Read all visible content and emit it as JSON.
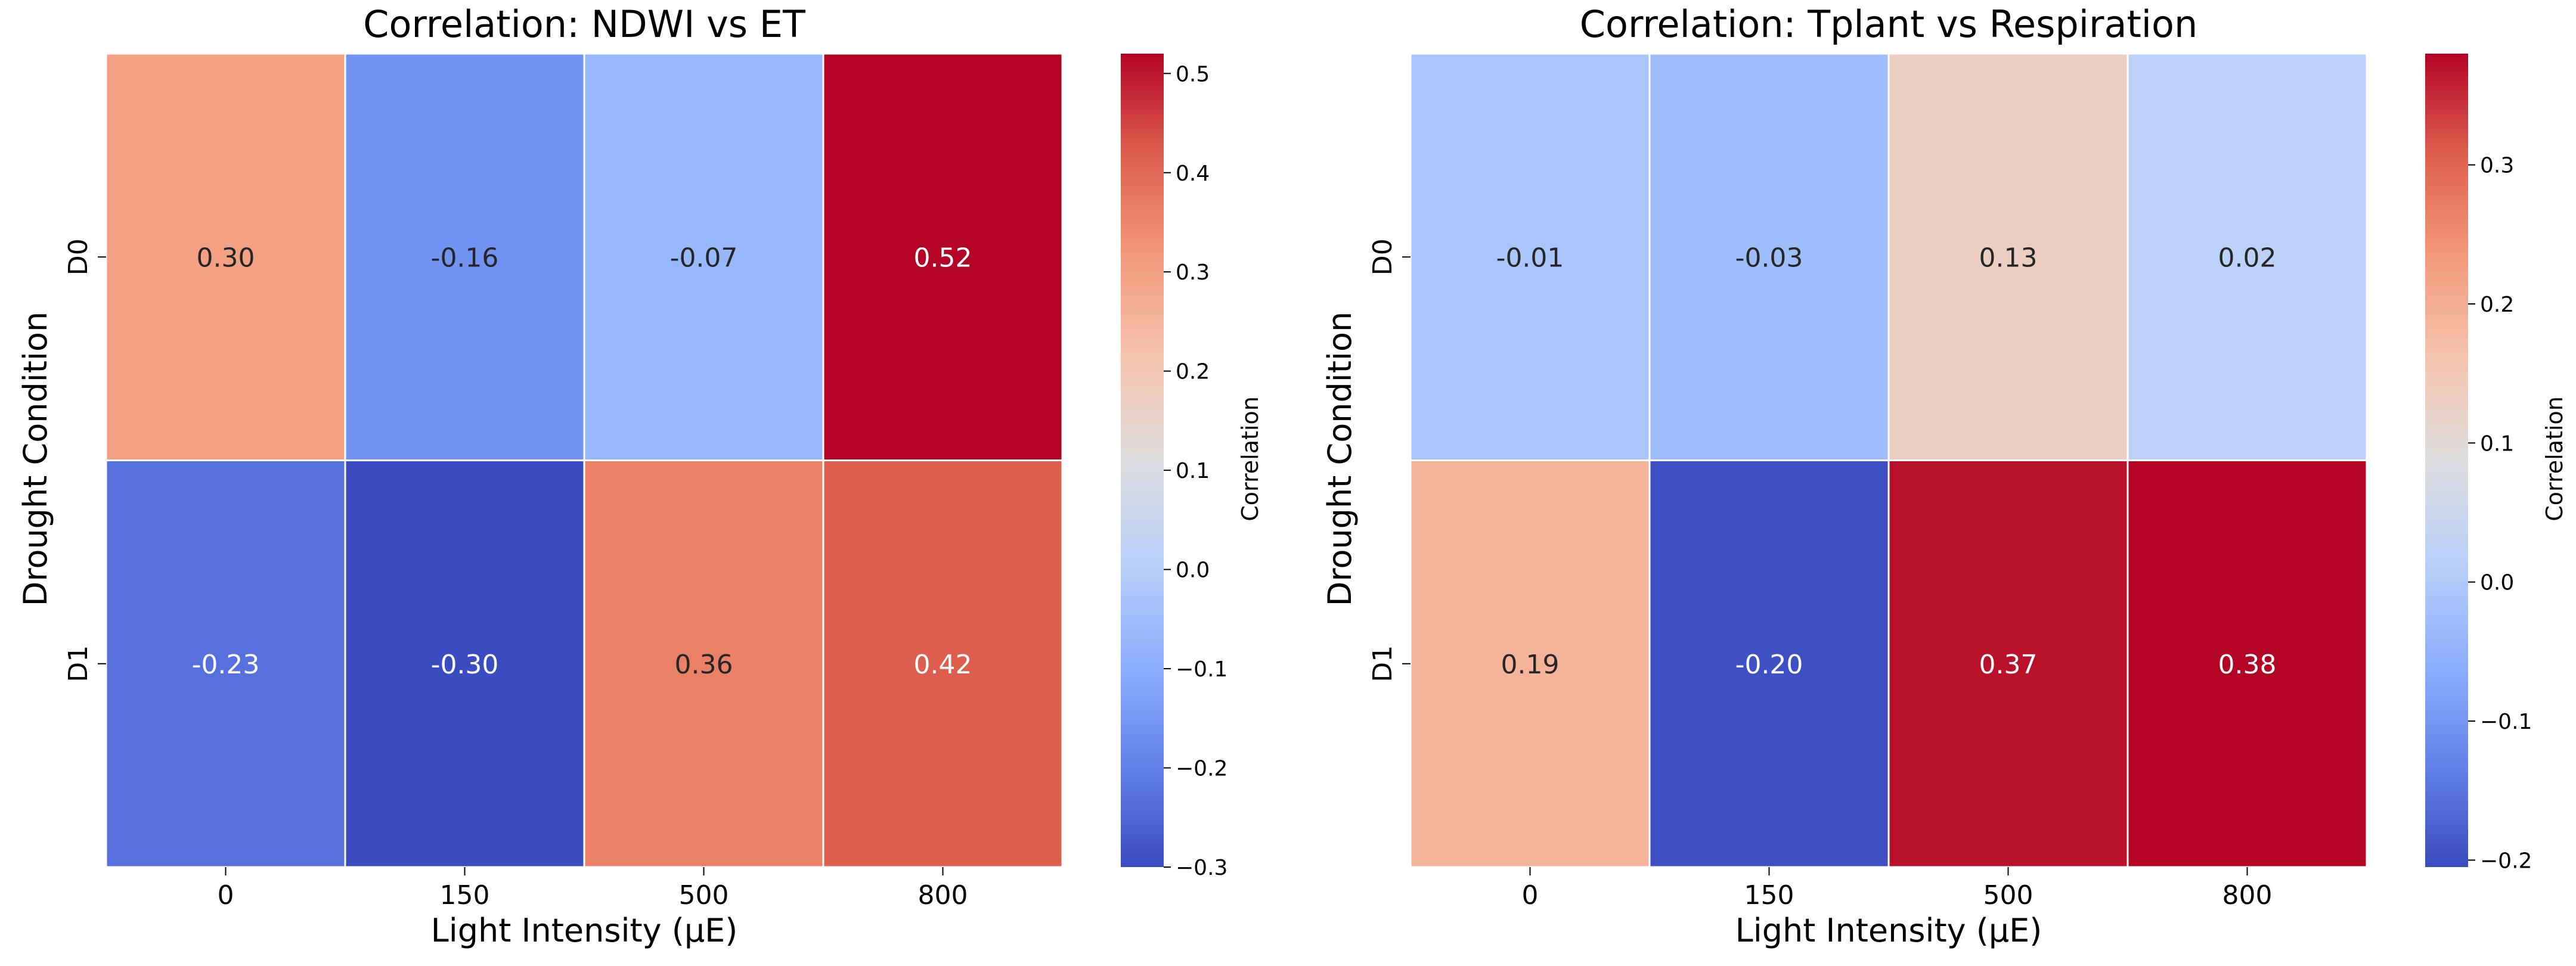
{
  "chart_data": [
    {
      "type": "heatmap",
      "title": "Correlation: NDWI vs ET",
      "xlabel": "Light Intensity (µE)",
      "ylabel": "Drought Condition",
      "x_categories": [
        "0",
        "150",
        "500",
        "800"
      ],
      "y_categories": [
        "D0",
        "D1"
      ],
      "values": [
        [
          0.3,
          -0.16,
          -0.07,
          0.52
        ],
        [
          -0.23,
          -0.3,
          0.36,
          0.42
        ]
      ],
      "value_labels": [
        [
          "0.30",
          "-0.16",
          "-0.07",
          "0.52"
        ],
        [
          "-0.23",
          "-0.30",
          "0.36",
          "0.42"
        ]
      ],
      "colormap": "coolwarm",
      "colorbar": {
        "label": "Correlation",
        "range": [
          -0.3,
          0.52
        ],
        "ticks": [
          -0.3,
          -0.2,
          -0.1,
          0.0,
          0.1,
          0.2,
          0.3,
          0.4,
          0.5
        ],
        "tick_labels": [
          "−0.3",
          "−0.2",
          "−0.1",
          "0.0",
          "0.1",
          "0.2",
          "0.3",
          "0.4",
          "0.5"
        ]
      }
    },
    {
      "type": "heatmap",
      "title": "Correlation: Tplant vs Respiration",
      "xlabel": "Light Intensity (µE)",
      "ylabel": "Drought Condition",
      "x_categories": [
        "0",
        "150",
        "500",
        "800"
      ],
      "y_categories": [
        "D0",
        "D1"
      ],
      "values": [
        [
          -0.01,
          -0.03,
          0.13,
          0.02
        ],
        [
          0.19,
          -0.2,
          0.37,
          0.38
        ]
      ],
      "value_labels": [
        [
          "-0.01",
          "-0.03",
          "0.13",
          "0.02"
        ],
        [
          "0.19",
          "-0.20",
          "0.37",
          "0.38"
        ]
      ],
      "colormap": "coolwarm",
      "colorbar": {
        "label": "Correlation",
        "range": [
          -0.205,
          0.38
        ],
        "ticks": [
          -0.2,
          -0.1,
          0.0,
          0.1,
          0.2,
          0.3
        ],
        "tick_labels": [
          "−0.2",
          "−0.1",
          "0.0",
          "0.1",
          "0.2",
          "0.3"
        ]
      }
    }
  ]
}
